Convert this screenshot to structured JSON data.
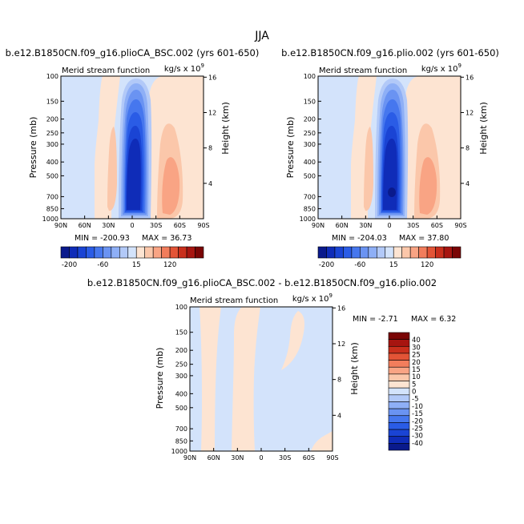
{
  "figure": {
    "season": "JJA"
  },
  "colors": {
    "panel_palette": [
      "#0a1a8c",
      "#0f2cb8",
      "#1a44d4",
      "#2a5ce6",
      "#4677ee",
      "#6a93f2",
      "#8eaff6",
      "#b2c9f8",
      "#d3e3fb",
      "#fde4d2",
      "#fbc7aa",
      "#f9a484",
      "#f27d5c",
      "#e35436",
      "#c92f1c",
      "#a71510",
      "#7a0505"
    ],
    "diff_palette": [
      "#0a1a8c",
      "#0f2cb8",
      "#1a44d4",
      "#2a5ce6",
      "#4677ee",
      "#6a93f2",
      "#8eaff6",
      "#b2c9f8",
      "#d3e3fb",
      "#fde4d2",
      "#fbc7aa",
      "#f9a484",
      "#f27d5c",
      "#e35436",
      "#c92f1c",
      "#a71510",
      "#7a0505"
    ]
  },
  "chart_data": [
    {
      "type": "heatmap",
      "id": "panel-1",
      "case_title": "b.e12.B1850CN.f09_g16.plioCA_BSC.002 (yrs 601-650)",
      "left_title": "Merid stream function",
      "units_label": "kg/s x 10",
      "units_exp": "9",
      "xlabel": "",
      "ylabel": "Pressure (mb)",
      "y2label": "Height (km)",
      "x_ticks": [
        "90N",
        "60N",
        "30N",
        "0",
        "30S",
        "60S",
        "90S"
      ],
      "y_ticks": [
        "100",
        "150",
        "200",
        "250",
        "300",
        "400",
        "500",
        "700",
        "850",
        "1000"
      ],
      "y2_ticks": [
        "16",
        "12",
        "8",
        "4"
      ],
      "min_label": "MIN = -200.93",
      "max_label": "MAX =  36.73",
      "min": -200.93,
      "max": 36.73,
      "colorbar_labels": [
        "-200",
        "-60",
        "15",
        "120"
      ]
    },
    {
      "type": "heatmap",
      "id": "panel-2",
      "case_title": "b.e12.B1850CN.f09_g16.plio.002 (yrs 601-650)",
      "left_title": "Merid stream function",
      "units_label": "kg/s x 10",
      "units_exp": "9",
      "xlabel": "",
      "ylabel": "Pressure (mb)",
      "y2label": "Height (km)",
      "x_ticks": [
        "90N",
        "60N",
        "30N",
        "0",
        "30S",
        "60S",
        "90S"
      ],
      "y_ticks": [
        "100",
        "150",
        "200",
        "250",
        "300",
        "400",
        "500",
        "700",
        "850",
        "1000"
      ],
      "y2_ticks": [
        "16",
        "12",
        "8",
        "4"
      ],
      "min_label": "MIN = -204.03",
      "max_label": "MAX =  37.80",
      "min": -204.03,
      "max": 37.8,
      "colorbar_labels": [
        "-200",
        "-60",
        "15",
        "120"
      ]
    },
    {
      "type": "heatmap",
      "id": "panel-diff",
      "case_title": "b.e12.B1850CN.f09_g16.plioCA_BSC.002 - b.e12.B1850CN.f09_g16.plio.002",
      "left_title": "Merid stream function",
      "units_label": "kg/s x 10",
      "units_exp": "9",
      "xlabel": "",
      "ylabel": "Pressure (mb)",
      "y2label": "Height (km)",
      "x_ticks": [
        "90N",
        "60N",
        "30N",
        "0",
        "30S",
        "60S",
        "90S"
      ],
      "y_ticks": [
        "100",
        "150",
        "200",
        "250",
        "300",
        "400",
        "500",
        "700",
        "850",
        "1000"
      ],
      "y2_ticks": [
        "16",
        "12",
        "8",
        "4"
      ],
      "min_label": "MIN =  -2.71",
      "max_label": "MAX =   6.32",
      "min": -2.71,
      "max": 6.32,
      "colorbar_labels": [
        "40",
        "30",
        "25",
        "20",
        "15",
        "10",
        "5",
        "0",
        "-5",
        "-10",
        "-15",
        "-20",
        "-25",
        "-30",
        "-40"
      ]
    }
  ]
}
